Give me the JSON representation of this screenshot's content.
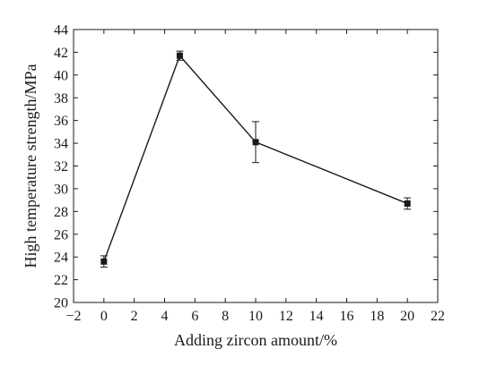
{
  "chart_data": {
    "type": "line",
    "title": "",
    "xlabel": "Adding zircon amount/%",
    "ylabel": "High temperature strength/MPa",
    "xlim": [
      -2,
      22
    ],
    "ylim": [
      20,
      44
    ],
    "xticks": [
      -2,
      0,
      2,
      4,
      6,
      8,
      10,
      12,
      14,
      16,
      18,
      20,
      22
    ],
    "yticks": [
      20,
      22,
      24,
      26,
      28,
      30,
      32,
      34,
      36,
      38,
      40,
      42,
      44
    ],
    "grid": false,
    "legend": "none",
    "series": [
      {
        "x": [
          0,
          5,
          10,
          20
        ],
        "y": [
          23.6,
          41.7,
          34.1,
          28.7
        ],
        "yerr": [
          0.5,
          0.4,
          1.8,
          0.5
        ],
        "marker": "square",
        "color": "#1a1a1a"
      }
    ]
  }
}
